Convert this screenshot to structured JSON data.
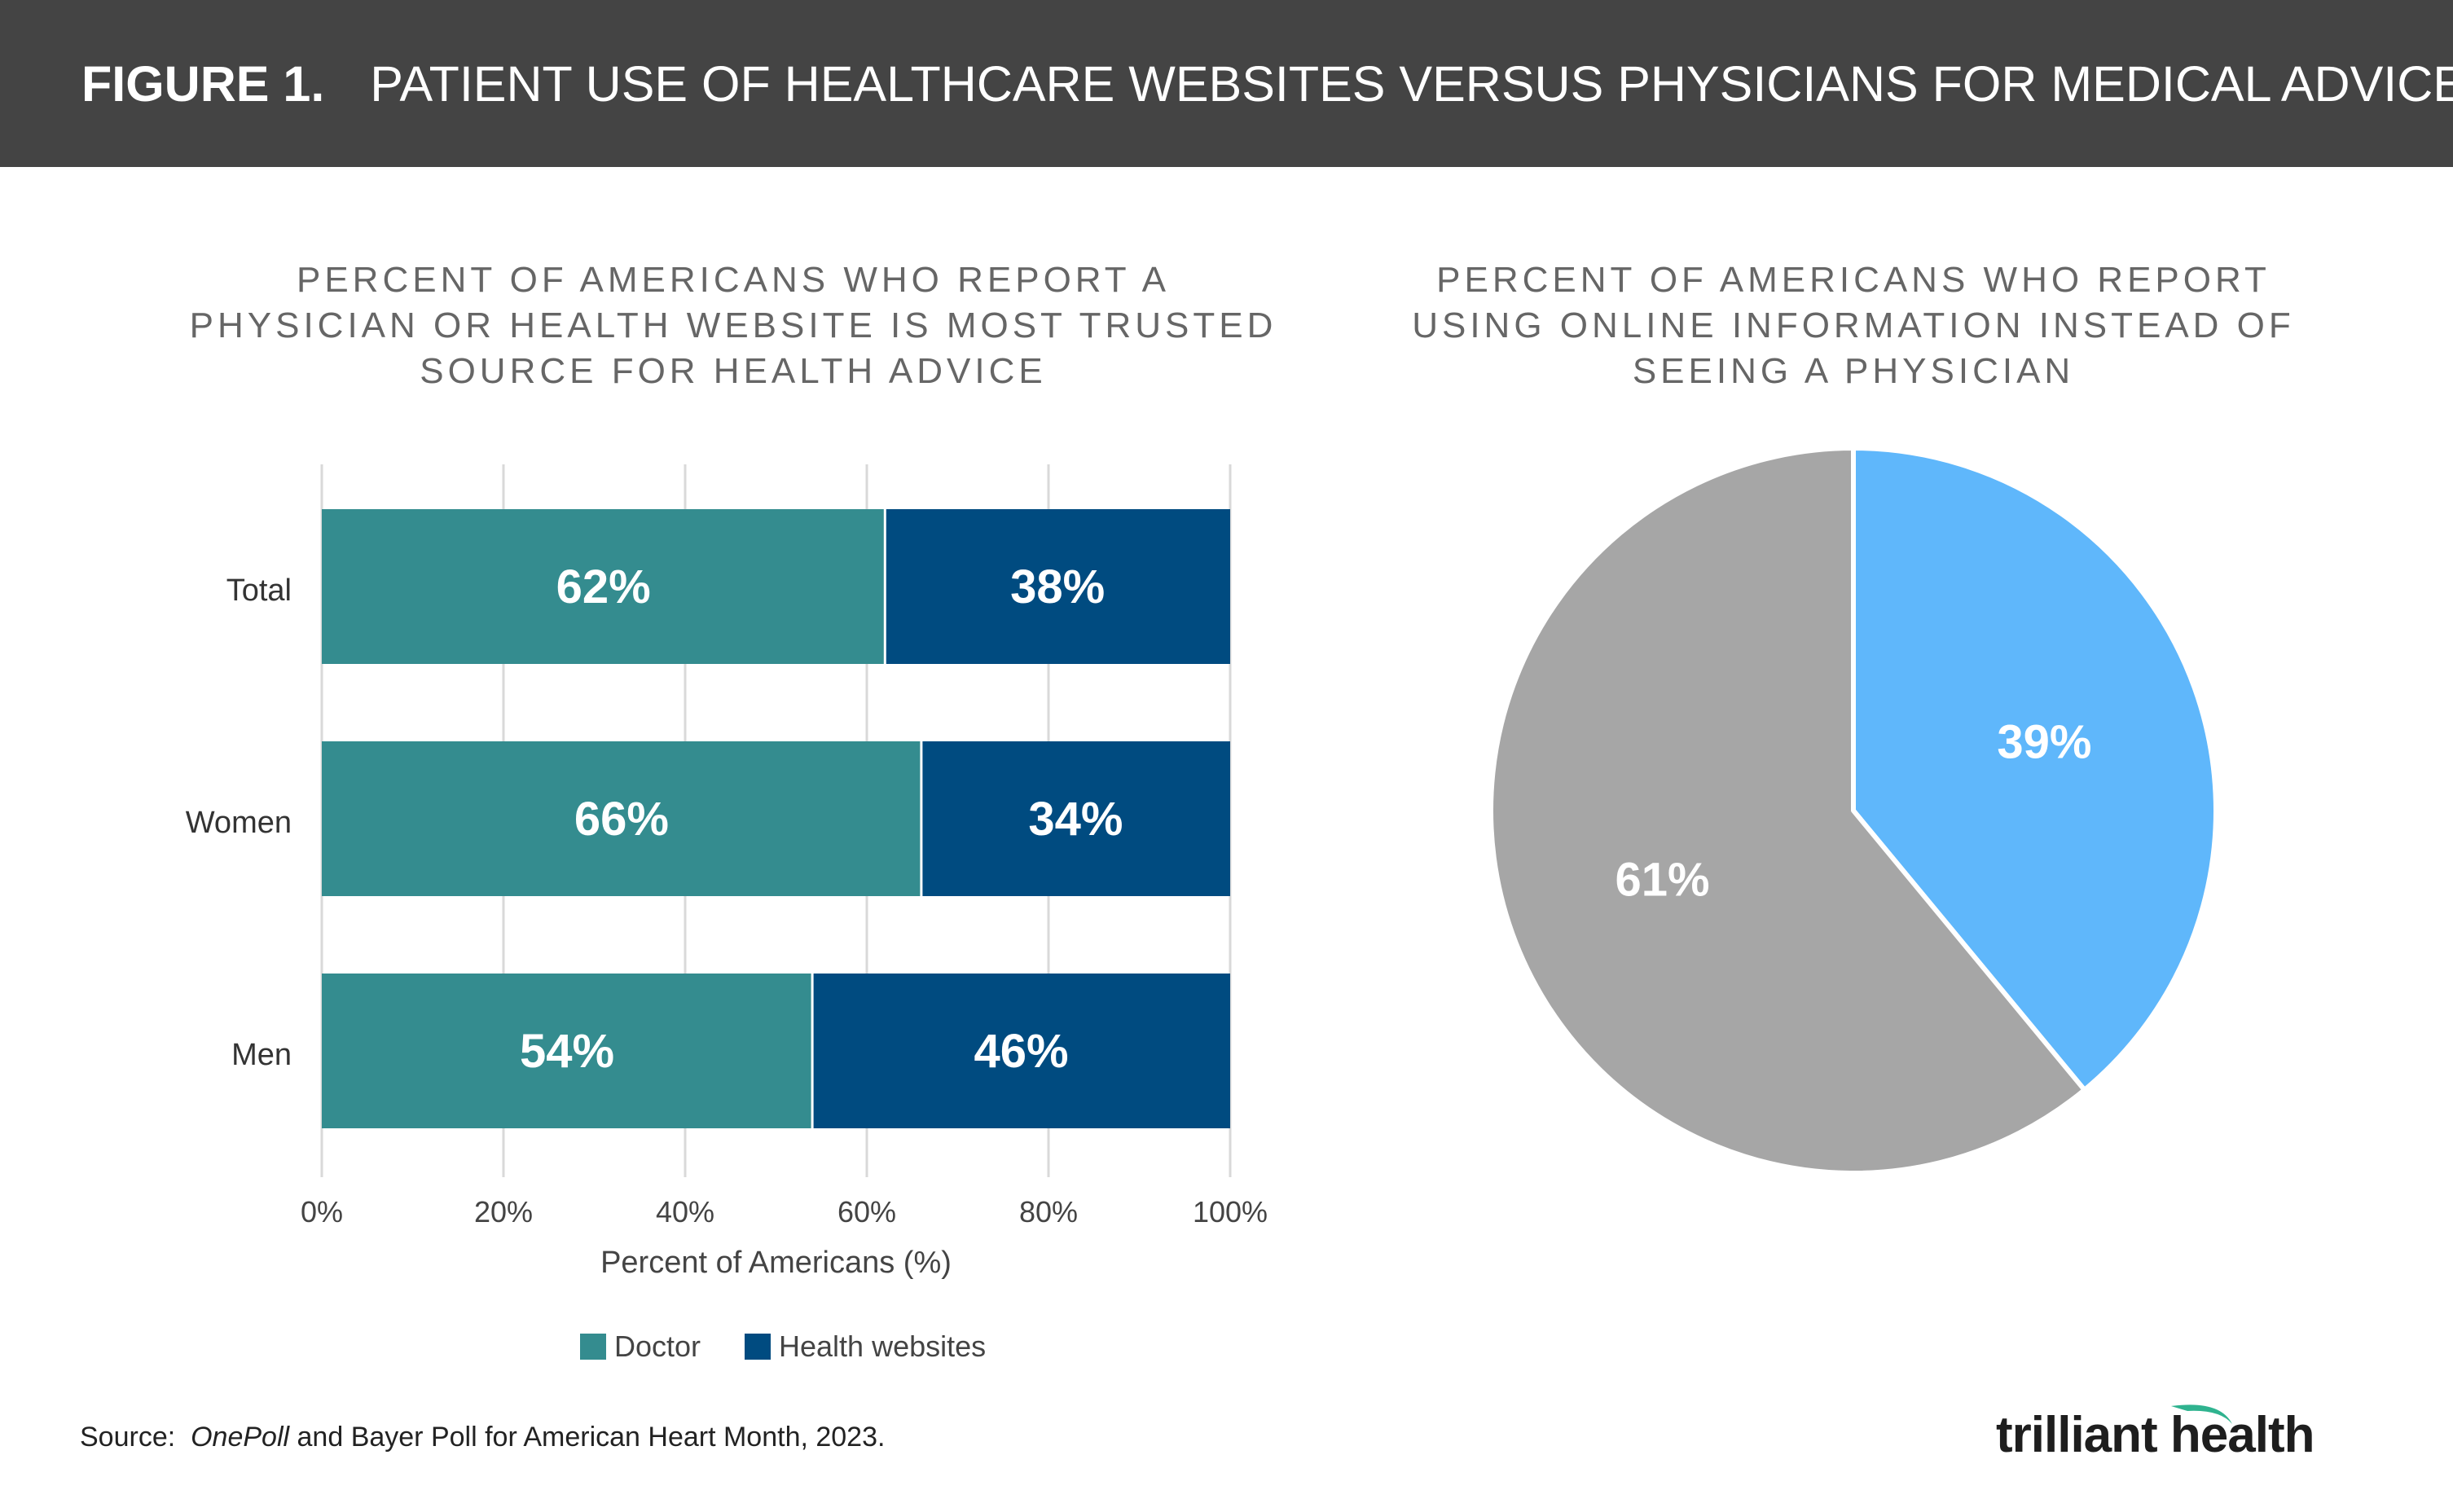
{
  "header": {
    "figure_label": "FIGURE 1.",
    "title": "PATIENT USE OF HEALTHCARE WEBSITES VERSUS PHYSICIANS FOR MEDICAL ADVICE"
  },
  "colors": {
    "doctor": "#348c8f",
    "health_websites": "#004b80",
    "pie_online": "#5fb7fb",
    "pie_physician": "#a6a6a6",
    "banner": "#444444"
  },
  "chart_data": [
    {
      "type": "bar",
      "orientation": "horizontal",
      "stacked": true,
      "title_lines": [
        "PERCENT OF AMERICANS WHO REPORT A",
        "PHYSICIAN OR HEALTH WEBSITE IS MOST TRUSTED",
        "SOURCE FOR HEALTH ADVICE"
      ],
      "categories": [
        "Total",
        "Women",
        "Men"
      ],
      "series": [
        {
          "name": "Doctor",
          "values": [
            62,
            66,
            54
          ],
          "labels": [
            "62%",
            "66%",
            "54%"
          ]
        },
        {
          "name": "Health websites",
          "values": [
            38,
            34,
            46
          ],
          "labels": [
            "38%",
            "34%",
            "46%"
          ]
        }
      ],
      "xlabel": "Percent of Americans (%)",
      "xlim": [
        0,
        100
      ],
      "xticks": [
        0,
        20,
        40,
        60,
        80,
        100
      ],
      "xtick_labels": [
        "0%",
        "20%",
        "40%",
        "60%",
        "80%",
        "100%"
      ],
      "grid": "vertical",
      "legend": "bottom"
    },
    {
      "type": "pie",
      "title_lines": [
        "PERCENT OF AMERICANS WHO REPORT",
        "USING ONLINE INFORMATION INSTEAD OF",
        "SEEING A PHYSICIAN"
      ],
      "slices": [
        {
          "value": 39,
          "label": "39%",
          "color": "#5fb7fb"
        },
        {
          "value": 61,
          "label": "61%",
          "color": "#a6a6a6"
        }
      ]
    }
  ],
  "footer": {
    "source_prefix": "Source:",
    "source_italic": "OnePoll",
    "source_rest": "and Bayer Poll for American Heart Month, 2023.",
    "logo_text": "trilliant health"
  }
}
